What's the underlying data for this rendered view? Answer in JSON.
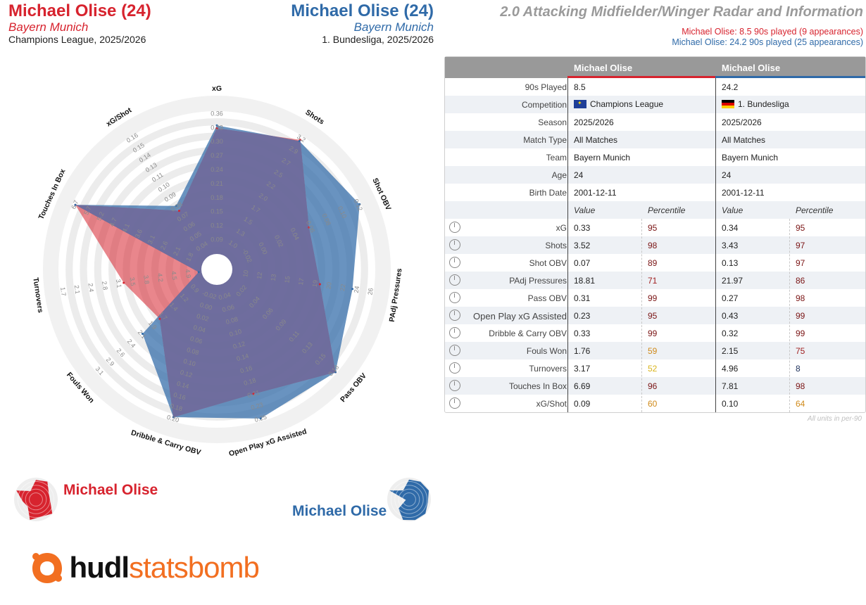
{
  "header": {
    "player1_name": "Michael Olise (24)",
    "player1_team": "Bayern Munich",
    "player1_comp": "Champions League, 2025/2026",
    "player2_name": "Michael Olise (24)",
    "player2_team": "Bayern Munich",
    "player2_comp": "1. Bundesliga, 2025/2026",
    "title": "2.0 Attacking Midfielder/Winger Radar and Information",
    "summary1": "Michael Olise: 8.5 90s played (9 appearances)",
    "summary2": "Michael Olise: 24.2 90s played (25 appearances)"
  },
  "colors": {
    "player1": "#d7232e",
    "player2": "#2f6aa8",
    "overlap": "#6b6fa0",
    "brand_orange": "#f26f21"
  },
  "legend": {
    "player1": "Michael Olise",
    "player2": "Michael Olise"
  },
  "brand": {
    "part1": "hudl",
    "part2": "statsbomb"
  },
  "chart_data": {
    "type": "radar",
    "axes": [
      "xG",
      "Shots",
      "Shot OBV",
      "PAdj Pressures",
      "Pass OBV",
      "Open Play xG Assisted",
      "Dribble & Carry OBV",
      "Fouls Won",
      "Turnovers",
      "Touches In Box",
      "xG/Shot"
    ],
    "tick_labels": [
      [
        "0.09",
        "0.12",
        "0.15",
        "0.18",
        "0.21",
        "0.24",
        "0.27",
        "0.30",
        "0.33",
        "0.36"
      ],
      [
        "1.0",
        "1.3",
        "1.5",
        "1.7",
        "2.0",
        "2.2",
        "2.5",
        "2.7",
        "2.9",
        "3.2"
      ],
      [
        "-0.02",
        "0.00",
        "0.02",
        "0.04",
        "0.06",
        "0.08",
        "0.10",
        "0.12"
      ],
      [
        "10",
        "12",
        "13",
        "15",
        "17",
        "19",
        "20",
        "22",
        "24",
        "26"
      ],
      [
        "0.02",
        "0.04",
        "0.06",
        "0.09",
        "0.11",
        "0.13",
        "0.15",
        "0.18"
      ],
      [
        "0.04",
        "0.06",
        "0.08",
        "0.10",
        "0.12",
        "0.14",
        "0.16",
        "0.18",
        "0.21",
        "0.23",
        "0.25"
      ],
      [
        "-0.02",
        "0.00",
        "0.02",
        "0.04",
        "0.06",
        "0.08",
        "0.10",
        "0.12",
        "0.14",
        "0.16",
        "0.18",
        "0.20"
      ],
      [
        "0.9",
        "1.2",
        "1.4",
        "1.7",
        "1.9",
        "2.1",
        "2.4",
        "2.6",
        "2.9",
        "3.1"
      ],
      [
        "4.9",
        "4.5",
        "4.2",
        "3.8",
        "3.5",
        "3.1",
        "2.8",
        "2.4",
        "2.1",
        "1.7"
      ],
      [
        "1.8",
        "2.1",
        "2.6",
        "3.1",
        "3.6",
        "4.1",
        "4.7",
        "5.2",
        "5.7",
        "6.7"
      ],
      [
        "0.04",
        "0.05",
        "0.06",
        "0.07",
        "0.08",
        "0.09",
        "0.10",
        "0.11",
        "0.13",
        "0.14",
        "0.15",
        "0.16"
      ]
    ],
    "series": [
      {
        "name": "Michael Olise",
        "values": [
          0.33,
          3.52,
          0.07,
          18.81,
          0.31,
          0.23,
          0.33,
          1.76,
          3.17,
          6.69,
          0.09
        ],
        "fraction": [
          0.88,
          0.97,
          0.6,
          0.62,
          0.99,
          0.8,
          0.97,
          0.42,
          0.55,
          0.98,
          0.38
        ]
      },
      {
        "name": "Michael Olise",
        "values": [
          0.34,
          3.43,
          0.13,
          21.97,
          0.27,
          0.43,
          0.32,
          2.15,
          4.96,
          7.81,
          0.1
        ],
        "fraction": [
          0.9,
          0.96,
          0.99,
          0.85,
          0.99,
          0.98,
          0.97,
          0.58,
          0.02,
          0.98,
          0.42
        ]
      }
    ]
  },
  "table": {
    "head1": "Michael Olise",
    "head2": "Michael Olise",
    "info_rows": [
      {
        "label": "90s Played",
        "v1": "8.5",
        "v2": "24.2"
      },
      {
        "label": "Competition",
        "v1": "Champions League",
        "v2": "1. Bundesliga"
      },
      {
        "label": "Season",
        "v1": "2025/2026",
        "v2": "2025/2026"
      },
      {
        "label": "Match Type",
        "v1": "All Matches",
        "v2": "All Matches"
      },
      {
        "label": "Team",
        "v1": "Bayern Munich",
        "v2": "Bayern Munich"
      },
      {
        "label": "Age",
        "v1": "24",
        "v2": "24"
      },
      {
        "label": "Birth Date",
        "v1": "2001-12-11",
        "v2": "2001-12-11"
      }
    ],
    "value_head": "Value",
    "pct_head": "Percentile",
    "stat_rows": [
      {
        "label": "xG",
        "v1": "0.33",
        "p1": "95",
        "v2": "0.34",
        "p2": "95"
      },
      {
        "label": "Shots",
        "v1": "3.52",
        "p1": "98",
        "v2": "3.43",
        "p2": "97"
      },
      {
        "label": "Shot OBV",
        "v1": "0.07",
        "p1": "89",
        "v2": "0.13",
        "p2": "97"
      },
      {
        "label": "PAdj Pressures",
        "v1": "18.81",
        "p1": "71",
        "v2": "21.97",
        "p2": "86"
      },
      {
        "label": "Pass OBV",
        "v1": "0.31",
        "p1": "99",
        "v2": "0.27",
        "p2": "98"
      },
      {
        "label": "Open Play xG Assisted",
        "v1": "0.23",
        "p1": "95",
        "v2": "0.43",
        "p2": "99"
      },
      {
        "label": "Dribble & Carry OBV",
        "v1": "0.33",
        "p1": "99",
        "v2": "0.32",
        "p2": "99"
      },
      {
        "label": "Fouls Won",
        "v1": "1.76",
        "p1": "59",
        "v2": "2.15",
        "p2": "75"
      },
      {
        "label": "Turnovers",
        "v1": "3.17",
        "p1": "52",
        "v2": "4.96",
        "p2": "8"
      },
      {
        "label": "Touches In Box",
        "v1": "6.69",
        "p1": "96",
        "v2": "7.81",
        "p2": "98"
      },
      {
        "label": "xG/Shot",
        "v1": "0.09",
        "p1": "60",
        "v2": "0.10",
        "p2": "64"
      }
    ],
    "footnote": "All units in per-90"
  }
}
